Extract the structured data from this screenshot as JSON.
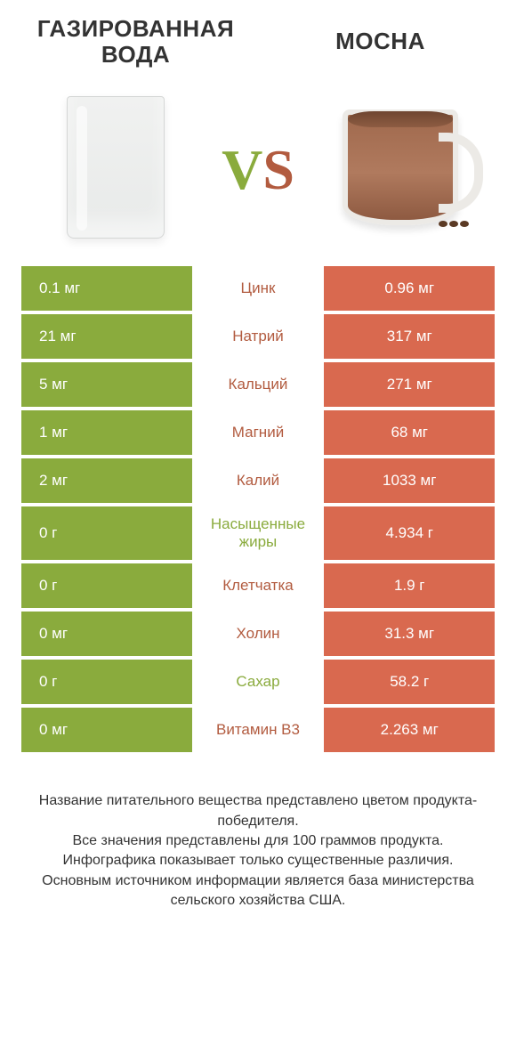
{
  "header": {
    "left_title": "Газированная вода",
    "right_title": "Mocha",
    "vs_label": "VS"
  },
  "colors": {
    "left_bar": "#8aab3d",
    "right_bar": "#d9694f",
    "left_text": "#8aab3d",
    "right_text": "#b25b3f",
    "row_gap": "#ffffff"
  },
  "table": {
    "rows": [
      {
        "left": "0.1 мг",
        "label": "Цинк",
        "right": "0.96 мг",
        "winner": "right"
      },
      {
        "left": "21 мг",
        "label": "Натрий",
        "right": "317 мг",
        "winner": "right"
      },
      {
        "left": "5 мг",
        "label": "Кальций",
        "right": "271 мг",
        "winner": "right"
      },
      {
        "left": "1 мг",
        "label": "Магний",
        "right": "68 мг",
        "winner": "right"
      },
      {
        "left": "2 мг",
        "label": "Калий",
        "right": "1033 мг",
        "winner": "right"
      },
      {
        "left": "0 г",
        "label": "Насыщенные жиры",
        "right": "4.934 г",
        "winner": "left"
      },
      {
        "left": "0 г",
        "label": "Клетчатка",
        "right": "1.9 г",
        "winner": "right"
      },
      {
        "left": "0 мг",
        "label": "Холин",
        "right": "31.3 мг",
        "winner": "right"
      },
      {
        "left": "0 г",
        "label": "Сахар",
        "right": "58.2 г",
        "winner": "left"
      },
      {
        "left": "0 мг",
        "label": "Витамин B3",
        "right": "2.263 мг",
        "winner": "right"
      }
    ]
  },
  "footer": {
    "text": "Название питательного вещества представлено цветом продукта-победителя.\nВсе значения представлены для 100 граммов продукта.\nИнфографика показывает только существенные различия.\nОсновным источником информации является база министерства сельского хозяйства США."
  }
}
